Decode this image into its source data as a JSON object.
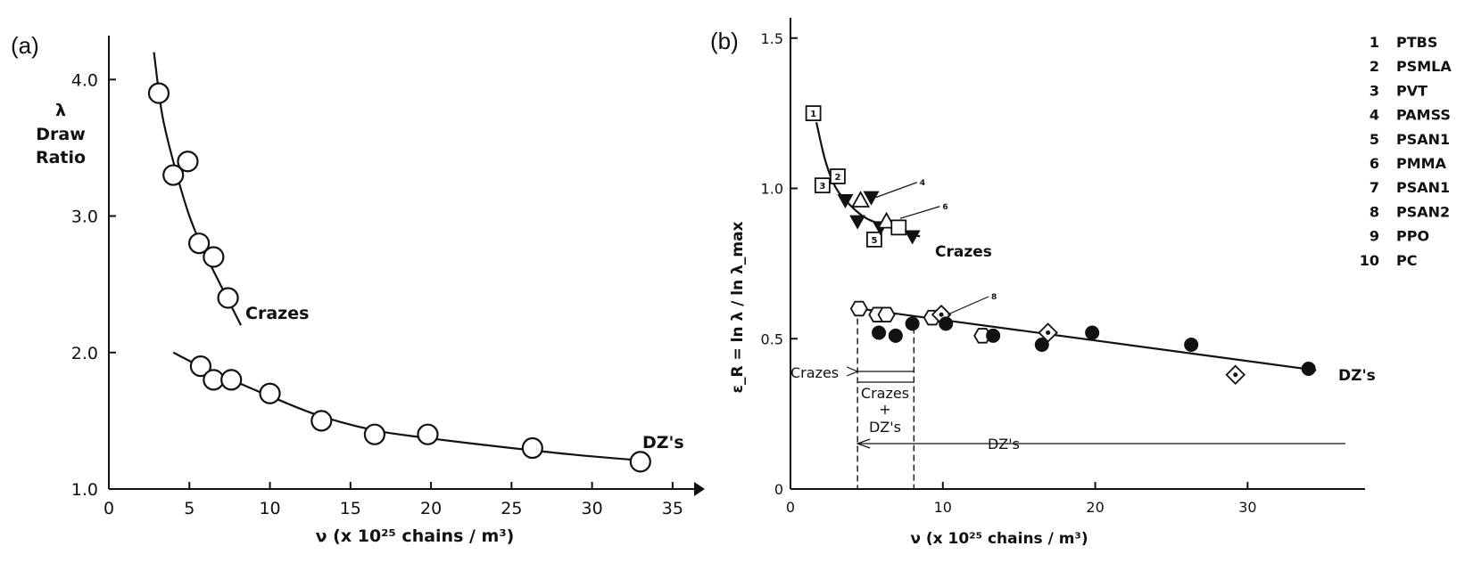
{
  "chart_data": [
    {
      "type": "scatter",
      "panel_label": "(a)",
      "xlabel": "ν (x 10²⁵ chains / m³)",
      "ylabel": [
        "λ",
        "Draw",
        "Ratio"
      ],
      "xlim": [
        0,
        37
      ],
      "ylim": [
        1.0,
        4.4
      ],
      "xticks": [
        0,
        5,
        10,
        15,
        20,
        25,
        30,
        35
      ],
      "yticks": [
        1.0,
        2.0,
        3.0,
        4.0
      ],
      "series": [
        {
          "name": "Crazes",
          "marker": "open-circle",
          "points": [
            [
              3.1,
              3.9
            ],
            [
              4.0,
              3.3
            ],
            [
              4.9,
              3.4
            ],
            [
              5.6,
              2.8
            ],
            [
              6.5,
              2.7
            ],
            [
              7.4,
              2.4
            ]
          ],
          "fit": [
            [
              2.8,
              4.2
            ],
            [
              3.3,
              3.75
            ],
            [
              4.0,
              3.4
            ],
            [
              5.0,
              3.0
            ],
            [
              6.0,
              2.72
            ],
            [
              7.0,
              2.48
            ],
            [
              8.2,
              2.2
            ]
          ]
        },
        {
          "name": "DZ's",
          "marker": "open-circle",
          "points": [
            [
              5.7,
              1.9
            ],
            [
              6.5,
              1.8
            ],
            [
              7.6,
              1.8
            ],
            [
              10.0,
              1.7
            ],
            [
              13.2,
              1.5
            ],
            [
              16.5,
              1.4
            ],
            [
              19.8,
              1.4
            ],
            [
              26.3,
              1.3
            ],
            [
              33.0,
              1.2
            ]
          ],
          "fit": [
            [
              4.0,
              2.0
            ],
            [
              6.0,
              1.88
            ],
            [
              8.0,
              1.78
            ],
            [
              10.0,
              1.68
            ],
            [
              13.0,
              1.54
            ],
            [
              16.5,
              1.43
            ],
            [
              20.0,
              1.37
            ],
            [
              25.0,
              1.3
            ],
            [
              29.0,
              1.25
            ],
            [
              33.0,
              1.21
            ]
          ]
        }
      ],
      "annotations": [
        "Crazes",
        "DZ's"
      ]
    },
    {
      "type": "scatter",
      "panel_label": "(b)",
      "xlabel": "ν (x 10²⁵ chains / m³)",
      "ylabel": "ε_R = ln λ / ln λ_max",
      "xlim": [
        0,
        38
      ],
      "ylim": [
        0,
        1.6
      ],
      "xticks": [
        0,
        10,
        20,
        30
      ],
      "yticks": [
        0,
        0.5,
        1.0,
        1.5
      ],
      "legend": {
        "placement": "top-right",
        "items": [
          {
            "num": "1",
            "label": "PTBS"
          },
          {
            "num": "2",
            "label": "PSMLA"
          },
          {
            "num": "3",
            "label": "PVT"
          },
          {
            "num": "4",
            "label": "PAMSS"
          },
          {
            "num": "5",
            "label": "PSAN1"
          },
          {
            "num": "6",
            "label": "PMMA"
          },
          {
            "num": "7",
            "label": "PSAN1"
          },
          {
            "num": "8",
            "label": "PSAN2"
          },
          {
            "num": "9",
            "label": "PPO"
          },
          {
            "num": "10",
            "label": "PC"
          }
        ]
      },
      "series": [
        {
          "name": "Crazes",
          "points": [
            {
              "x": 1.5,
              "y": 1.25,
              "marker": "square",
              "label": "1"
            },
            {
              "x": 2.1,
              "y": 1.01,
              "marker": "square",
              "label": "3"
            },
            {
              "x": 3.1,
              "y": 1.04,
              "marker": "square",
              "label": "2"
            },
            {
              "x": 3.6,
              "y": 0.96,
              "marker": "tri-down-filled"
            },
            {
              "x": 4.4,
              "y": 0.89,
              "marker": "tri-down-filled"
            },
            {
              "x": 4.6,
              "y": 0.96,
              "marker": "tri-up-open"
            },
            {
              "x": 5.3,
              "y": 0.97,
              "marker": "tri-down-filled"
            },
            {
              "x": 5.5,
              "y": 0.83,
              "marker": "square",
              "label": "5"
            },
            {
              "x": 5.9,
              "y": 0.87,
              "marker": "tri-down-filled"
            },
            {
              "x": 6.3,
              "y": 0.89,
              "marker": "tri-up-open"
            },
            {
              "x": 7.1,
              "y": 0.87,
              "marker": "square"
            },
            {
              "x": 8.0,
              "y": 0.84,
              "marker": "tri-down-filled"
            }
          ],
          "fit": [
            [
              1.7,
              1.22
            ],
            [
              2.3,
              1.09
            ],
            [
              3.0,
              1.0
            ],
            [
              4.0,
              0.94
            ],
            [
              5.0,
              0.9
            ],
            [
              6.5,
              0.87
            ],
            [
              8.5,
              0.84
            ]
          ]
        },
        {
          "name": "DZ's",
          "points": [
            {
              "x": 4.5,
              "y": 0.6,
              "marker": "hexagon"
            },
            {
              "x": 5.8,
              "y": 0.52,
              "marker": "circle-filled"
            },
            {
              "x": 5.7,
              "y": 0.58,
              "marker": "hexagon"
            },
            {
              "x": 6.3,
              "y": 0.58,
              "marker": "hexagon"
            },
            {
              "x": 6.9,
              "y": 0.51,
              "marker": "circle-filled"
            },
            {
              "x": 8.0,
              "y": 0.55,
              "marker": "circle-filled"
            },
            {
              "x": 9.3,
              "y": 0.57,
              "marker": "hexagon"
            },
            {
              "x": 9.9,
              "y": 0.58,
              "marker": "diamond-open"
            },
            {
              "x": 10.2,
              "y": 0.55,
              "marker": "circle-filled"
            },
            {
              "x": 12.6,
              "y": 0.51,
              "marker": "hexagon"
            },
            {
              "x": 13.3,
              "y": 0.51,
              "marker": "circle-filled"
            },
            {
              "x": 16.5,
              "y": 0.48,
              "marker": "circle-filled"
            },
            {
              "x": 16.9,
              "y": 0.52,
              "marker": "diamond-open"
            },
            {
              "x": 19.8,
              "y": 0.52,
              "marker": "circle-filled"
            },
            {
              "x": 26.3,
              "y": 0.48,
              "marker": "circle-filled"
            },
            {
              "x": 29.2,
              "y": 0.38,
              "marker": "diamond-open"
            },
            {
              "x": 34.0,
              "y": 0.4,
              "marker": "circle-filled"
            }
          ],
          "fit": [
            [
              4.5,
              0.6
            ],
            [
              34.5,
              0.395
            ]
          ]
        }
      ],
      "annotations": {
        "crazes_curve": "Crazes",
        "dz_curve": "DZ's",
        "region_crazes": "Crazes",
        "region_mixed": [
          "Crazes",
          "+",
          "DZ's"
        ],
        "region_dz": "DZ's",
        "small_pointer_labels": [
          "4",
          "6",
          "8"
        ],
        "region_bounds_x": [
          4.4,
          8.1
        ]
      }
    }
  ]
}
